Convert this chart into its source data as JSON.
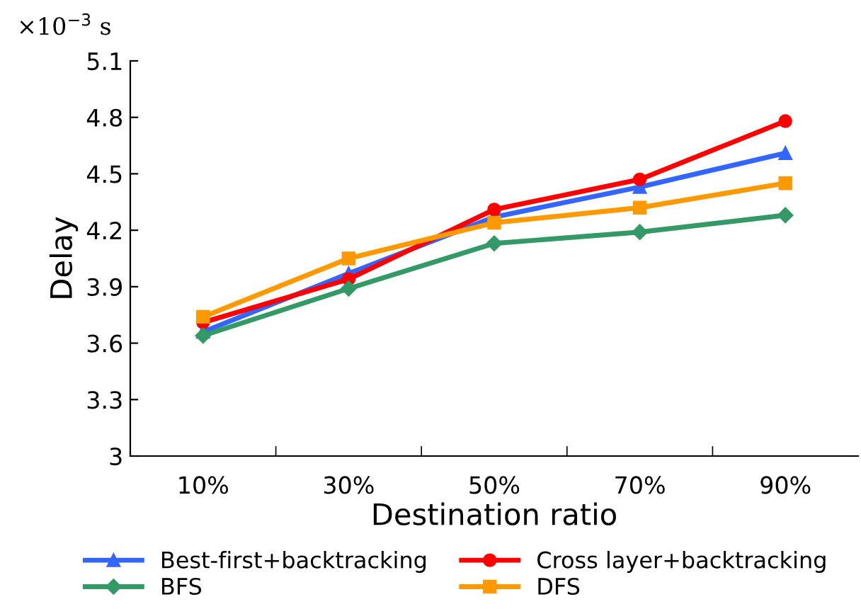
{
  "chart_data": {
    "type": "line",
    "xlabel": "Destination ratio",
    "ylabel": "Delay",
    "annotations": [
      "×10$^{−3}$ s"
    ],
    "categories": [
      "10%",
      "30%",
      "50%",
      "70%",
      "90%"
    ],
    "series": [
      {
        "name": "Best-first+backtracking",
        "color": "#3366ff",
        "marker": "triangle",
        "values": [
          3.66,
          3.97,
          4.27,
          4.43,
          4.61
        ]
      },
      {
        "name": "Cross layer+backtracking",
        "color": "#ff0000",
        "marker": "circle",
        "values": [
          3.71,
          3.94,
          4.31,
          4.47,
          4.78
        ]
      },
      {
        "name": "BFS",
        "color": "#339966",
        "marker": "diamond",
        "values": [
          3.64,
          3.89,
          4.13,
          4.19,
          4.28
        ]
      },
      {
        "name": "DFS",
        "color": "#ff9900",
        "marker": "square",
        "values": [
          3.74,
          4.05,
          4.24,
          4.32,
          4.45
        ]
      }
    ],
    "ylim": [
      3,
      5.1
    ],
    "yticks": [
      3,
      3.3,
      3.6,
      3.9,
      4.2,
      4.5,
      4.8,
      5.1
    ],
    "grid": false,
    "legend": "bottom",
    "line_style": "solid"
  }
}
